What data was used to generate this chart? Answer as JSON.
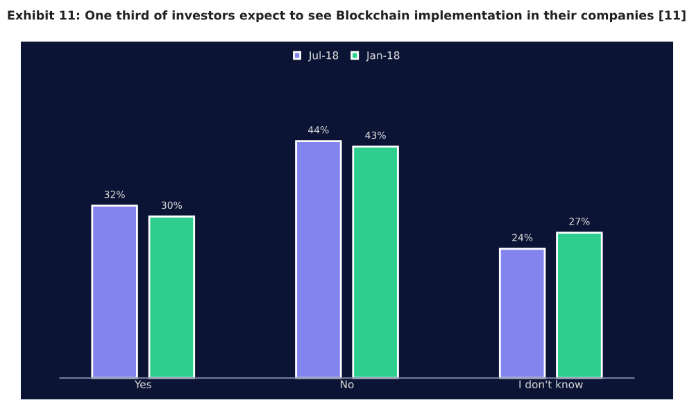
{
  "chart_data": {
    "type": "bar",
    "title": "Exhibit 11: One third of investors expect to see Blockchain implementation in their companies [11]",
    "categories": [
      "Yes",
      "No",
      "I don't know"
    ],
    "series": [
      {
        "name": "Jul-18",
        "color": "#8484ee",
        "values": [
          32,
          44,
          24
        ],
        "value_labels": [
          "32%",
          "44%",
          "24%"
        ]
      },
      {
        "name": "Jan-18",
        "color": "#2ecf8e",
        "values": [
          30,
          43,
          27
        ],
        "value_labels": [
          "30%",
          "43%",
          "27%"
        ]
      }
    ],
    "legend": "top",
    "grid": false
  }
}
